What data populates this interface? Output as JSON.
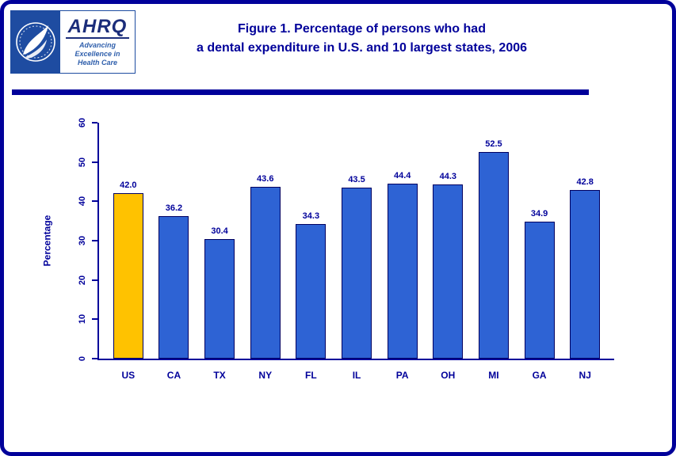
{
  "header": {
    "title_line1": "Figure 1. Percentage of persons who had",
    "title_line2": "a dental expenditure in U.S. and 10 largest states, 2006",
    "logo": {
      "ahrq_acronym": "AHRQ",
      "tagline_line1": "Advancing Excellence in",
      "tagline_line2": "Health Care"
    }
  },
  "chart_data": {
    "type": "bar",
    "title": "Figure 1. Percentage of persons who had a dental expenditure in U.S. and 10 largest states, 2006",
    "categories": [
      "US",
      "CA",
      "TX",
      "NY",
      "FL",
      "IL",
      "PA",
      "OH",
      "MI",
      "GA",
      "NJ"
    ],
    "values": [
      42.0,
      36.2,
      30.4,
      43.6,
      34.3,
      43.5,
      44.4,
      44.3,
      52.5,
      34.9,
      42.8
    ],
    "value_labels": [
      "42.0",
      "36.2",
      "30.4",
      "43.6",
      "34.3",
      "43.5",
      "44.4",
      "44.3",
      "52.5",
      "34.9",
      "42.8"
    ],
    "xlabel": "",
    "ylabel": "Percentage",
    "ylim": [
      0,
      60
    ],
    "yticks": [
      0,
      10,
      20,
      30,
      40,
      50,
      60
    ],
    "grid": false,
    "legend": false,
    "highlight_category": "US"
  },
  "colors": {
    "navy": "#00009a",
    "bar_blue": "#2e63d4",
    "bar_gold": "#ffc200",
    "bar_border": "#000060",
    "seal_blue": "#1e4ca1",
    "ahrq_navy": "#1b2d7a",
    "tagline_blue": "#2f5fac"
  }
}
